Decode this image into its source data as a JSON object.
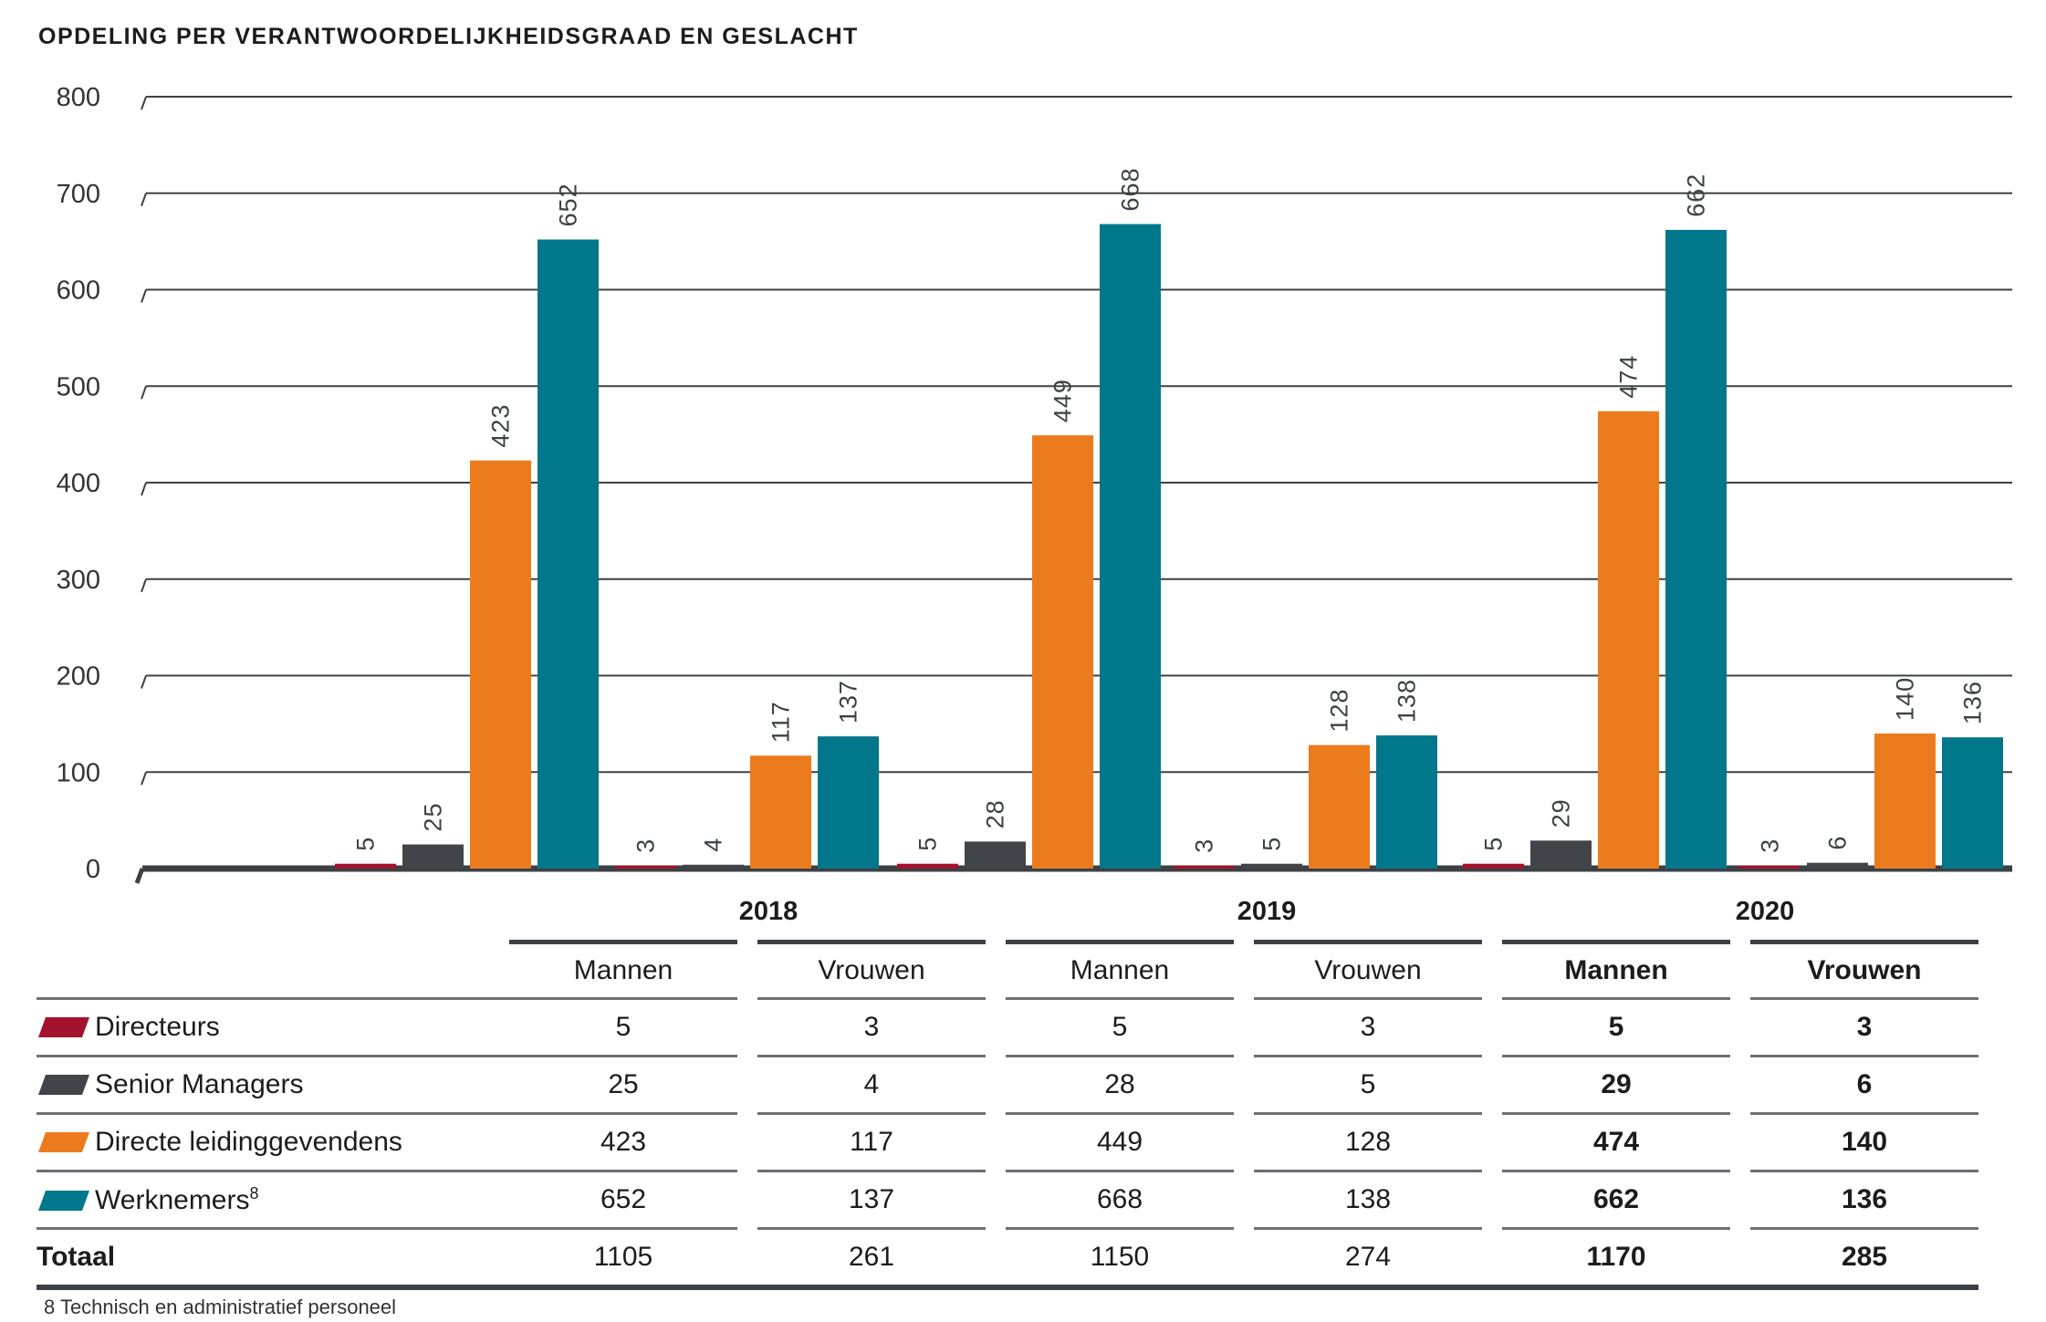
{
  "title": "OPDELING PER VERANTWOORDELIJKHEIDSGRAAD EN GESLACHT",
  "chart_data": {
    "type": "bar",
    "years": [
      "2018",
      "2019",
      "2020"
    ],
    "genders": [
      "Mannen",
      "Vrouwen"
    ],
    "categories": [
      "2018 Mannen",
      "2018 Vrouwen",
      "2019 Mannen",
      "2019 Vrouwen",
      "2020 Mannen",
      "2020 Vrouwen"
    ],
    "series": [
      {
        "name": "Directeurs",
        "color": "#a3122e",
        "values": [
          5,
          3,
          5,
          3,
          5,
          3
        ]
      },
      {
        "name": "Senior Managers",
        "color": "#414549",
        "values": [
          25,
          4,
          28,
          5,
          29,
          6
        ]
      },
      {
        "name": "Directe leidinggevendens",
        "color": "#ec7b1d",
        "values": [
          423,
          117,
          449,
          128,
          474,
          140
        ]
      },
      {
        "name": "Werknemers",
        "color": "#00778a",
        "values": [
          652,
          137,
          668,
          138,
          662,
          136
        ]
      }
    ],
    "ylim": [
      0,
      800
    ],
    "yticks": [
      "0",
      "100",
      "200",
      "300",
      "400",
      "500",
      "600",
      "700",
      "800"
    ],
    "grid": true
  },
  "table": {
    "header_years": [
      "2018",
      "2019",
      "2020"
    ],
    "col_headers": [
      "Mannen",
      "Vrouwen",
      "Mannen",
      "Vrouwen",
      "Mannen",
      "Vrouwen"
    ],
    "rows": [
      {
        "label": "Directeurs",
        "sup": "",
        "values": [
          "5",
          "3",
          "5",
          "3",
          "5",
          "3"
        ]
      },
      {
        "label": "Senior Managers",
        "sup": "",
        "values": [
          "25",
          "4",
          "28",
          "5",
          "29",
          "6"
        ]
      },
      {
        "label": "Directe leidinggevendens",
        "sup": "",
        "values": [
          "423",
          "117",
          "449",
          "128",
          "474",
          "140"
        ]
      },
      {
        "label": "Werknemers",
        "sup": "8",
        "values": [
          "652",
          "137",
          "668",
          "138",
          "662",
          "136"
        ]
      }
    ],
    "total": {
      "label": "Totaal",
      "values": [
        "1105",
        "261",
        "1150",
        "274",
        "1170",
        "285"
      ]
    }
  },
  "footnote": "8 Technisch en administratief personeel"
}
